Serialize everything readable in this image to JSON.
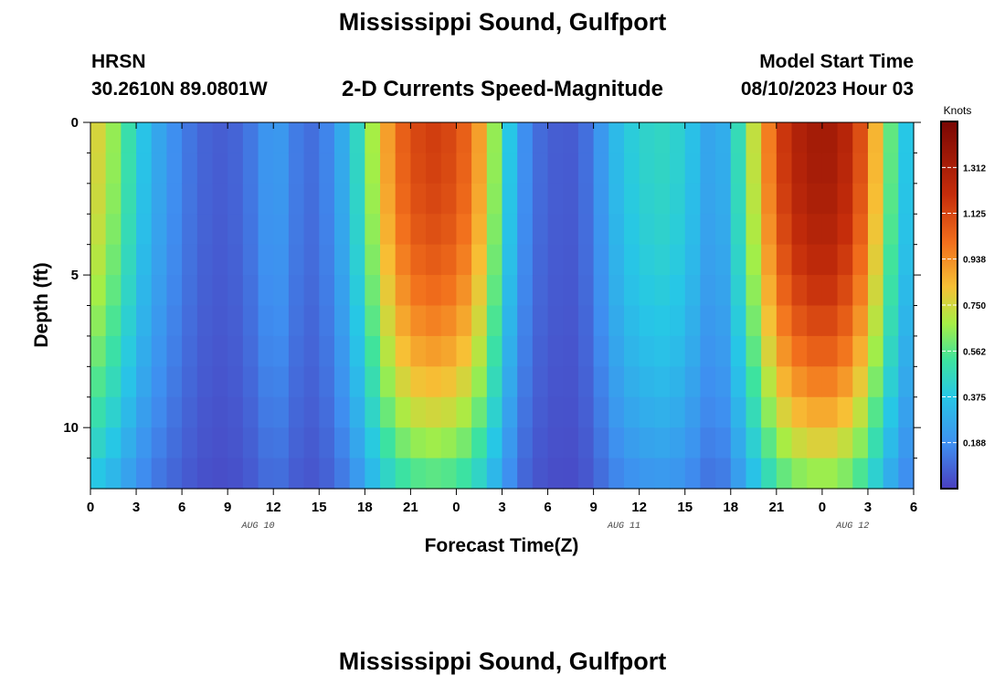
{
  "chart_data": {
    "type": "heatmap",
    "title": "Mississippi Sound, Gulfport",
    "station_code": "HRSN",
    "station_coords": "30.2610N  89.0801W",
    "subtitle": "2-D Currents Speed-Magnitude",
    "model_label": "Model Start Time",
    "model_time": "08/10/2023 Hour 03",
    "xlabel": "Forecast Time(Z)",
    "ylabel": "Depth (ft)",
    "x_ticks": [
      "0",
      "3",
      "6",
      "9",
      "12",
      "15",
      "18",
      "21",
      "0",
      "3",
      "6",
      "9",
      "12",
      "15",
      "18",
      "21",
      "0",
      "3",
      "6"
    ],
    "x_date_labels": [
      {
        "label": "AUG 10",
        "hour": 11
      },
      {
        "label": "AUG 11",
        "hour": 35
      },
      {
        "label": "AUG 12",
        "hour": 50
      }
    ],
    "y_ticks": [
      0,
      5,
      10
    ],
    "xlim": [
      0,
      54
    ],
    "ylim": [
      0,
      12
    ],
    "colorbar": {
      "unit": "Knots",
      "ticks": [
        "1.312",
        "1.125",
        "0.938",
        "0.750",
        "0.562",
        "0.375",
        "0.188"
      ],
      "tick_values": [
        1.312,
        1.125,
        0.938,
        0.75,
        0.562,
        0.375,
        0.188
      ],
      "range": [
        0,
        1.5
      ]
    },
    "speed_profile": {
      "hours": [
        0,
        1,
        2,
        3,
        4,
        5,
        6,
        7,
        8,
        9,
        10,
        11,
        12,
        13,
        14,
        15,
        16,
        17,
        18,
        19,
        20,
        21,
        22,
        23,
        24,
        25,
        26,
        27,
        28,
        29,
        30,
        31,
        32,
        33,
        34,
        35,
        36,
        37,
        38,
        39,
        40,
        41,
        42,
        43,
        44,
        45,
        46,
        47,
        48,
        49,
        50,
        51,
        52,
        53,
        54
      ],
      "speed": [
        0.8,
        0.72,
        0.58,
        0.42,
        0.3,
        0.22,
        0.15,
        0.1,
        0.07,
        0.07,
        0.1,
        0.16,
        0.25,
        0.18,
        0.1,
        0.12,
        0.2,
        0.35,
        0.55,
        0.8,
        1.0,
        1.1,
        1.15,
        1.15,
        1.1,
        1.0,
        0.8,
        0.5,
        0.25,
        0.12,
        0.08,
        0.06,
        0.07,
        0.15,
        0.28,
        0.38,
        0.42,
        0.45,
        0.45,
        0.4,
        0.3,
        0.22,
        0.35,
        0.6,
        0.85,
        1.1,
        1.25,
        1.32,
        1.35,
        1.32,
        1.2,
        1.0,
        0.7,
        0.45,
        0.3
      ]
    },
    "grid": false
  }
}
